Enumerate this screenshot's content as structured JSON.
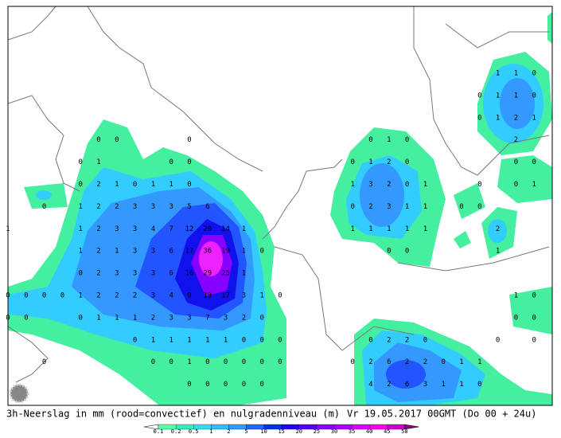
{
  "caption": "3h-Neerslag in mm (rood=convectief) en nulgradenniveau (m)",
  "valid_time": "Vr 19.05.2017 00GMT (Do 00 + 24u)",
  "scale_labels": [
    "0.1",
    "0.2",
    "0.5",
    "1",
    "2",
    "5",
    "10",
    "15",
    "20",
    "25",
    "30",
    "35",
    "40",
    "45",
    "50"
  ],
  "grid": {
    "rows": [
      [
        null,
        null,
        null,
        null,
        null,
        null,
        null,
        null,
        null,
        null,
        null,
        null,
        null,
        null,
        null,
        null,
        null,
        null,
        null,
        null,
        null,
        null,
        null,
        null,
        null,
        null,
        null,
        1,
        1,
        0,
        null
      ],
      [
        null,
        null,
        null,
        null,
        null,
        null,
        null,
        null,
        null,
        null,
        null,
        null,
        null,
        null,
        null,
        null,
        null,
        null,
        null,
        null,
        null,
        null,
        null,
        null,
        null,
        null,
        0,
        1,
        1,
        0,
        null
      ],
      [
        null,
        null,
        null,
        null,
        null,
        null,
        null,
        null,
        null,
        null,
        null,
        null,
        null,
        null,
        null,
        null,
        null,
        null,
        null,
        null,
        null,
        null,
        null,
        null,
        null,
        null,
        0,
        1,
        2,
        1,
        null
      ],
      [
        null,
        null,
        null,
        null,
        null,
        0,
        0,
        null,
        null,
        null,
        0,
        null,
        null,
        null,
        null,
        null,
        null,
        null,
        null,
        null,
        0,
        1,
        0,
        null,
        null,
        null,
        null,
        null,
        2,
        null,
        null
      ],
      [
        null,
        null,
        null,
        null,
        0,
        1,
        null,
        null,
        null,
        0,
        0,
        null,
        null,
        null,
        null,
        null,
        null,
        null,
        null,
        0,
        1,
        2,
        0,
        null,
        null,
        null,
        null,
        null,
        0,
        0,
        null
      ],
      [
        null,
        null,
        null,
        null,
        0,
        2,
        1,
        0,
        1,
        1,
        0,
        null,
        null,
        null,
        null,
        null,
        null,
        null,
        null,
        1,
        3,
        2,
        0,
        1,
        null,
        null,
        0,
        null,
        0,
        1,
        null
      ],
      [
        null,
        null,
        0,
        null,
        1,
        2,
        2,
        3,
        3,
        3,
        5,
        6,
        null,
        null,
        null,
        null,
        null,
        null,
        null,
        0,
        2,
        3,
        1,
        1,
        null,
        0,
        0,
        null,
        null,
        null,
        null
      ],
      [
        1,
        null,
        null,
        null,
        1,
        2,
        3,
        3,
        4,
        7,
        12,
        20,
        14,
        1,
        null,
        null,
        null,
        null,
        null,
        1,
        1,
        1,
        1,
        1,
        null,
        null,
        null,
        2,
        null,
        null,
        null
      ],
      [
        null,
        null,
        null,
        null,
        1,
        2,
        1,
        3,
        3,
        6,
        17,
        36,
        19,
        1,
        0,
        null,
        null,
        null,
        null,
        null,
        null,
        0,
        0,
        null,
        null,
        null,
        null,
        1,
        null,
        null,
        null
      ],
      [
        null,
        null,
        null,
        null,
        0,
        2,
        3,
        3,
        3,
        6,
        16,
        29,
        25,
        1,
        null,
        null,
        null,
        null,
        null,
        null,
        null,
        null,
        null,
        null,
        null,
        null,
        null,
        null,
        null,
        null,
        null
      ],
      [
        0,
        0,
        0,
        0,
        1,
        2,
        2,
        2,
        3,
        4,
        9,
        19,
        17,
        3,
        1,
        0,
        null,
        null,
        null,
        null,
        null,
        null,
        null,
        null,
        null,
        null,
        null,
        null,
        1,
        0,
        null
      ],
      [
        0,
        0,
        null,
        null,
        0,
        1,
        1,
        1,
        2,
        3,
        3,
        7,
        3,
        2,
        0,
        null,
        null,
        null,
        null,
        null,
        null,
        null,
        null,
        null,
        null,
        null,
        null,
        null,
        0,
        0,
        null
      ],
      [
        null,
        null,
        null,
        null,
        null,
        null,
        null,
        0,
        1,
        1,
        1,
        1,
        1,
        0,
        0,
        0,
        null,
        null,
        null,
        null,
        0,
        2,
        2,
        0,
        null,
        null,
        null,
        0,
        null,
        0,
        null
      ],
      [
        null,
        null,
        0,
        null,
        null,
        null,
        null,
        null,
        0,
        0,
        1,
        0,
        0,
        0,
        0,
        0,
        null,
        null,
        null,
        0,
        2,
        6,
        2,
        2,
        0,
        1,
        1,
        null,
        null,
        null,
        null
      ],
      [
        null,
        null,
        null,
        null,
        null,
        null,
        null,
        null,
        null,
        null,
        0,
        0,
        0,
        0,
        0,
        null,
        null,
        null,
        null,
        null,
        4,
        2,
        6,
        3,
        1,
        1,
        0,
        null,
        null,
        null,
        null
      ]
    ]
  }
}
